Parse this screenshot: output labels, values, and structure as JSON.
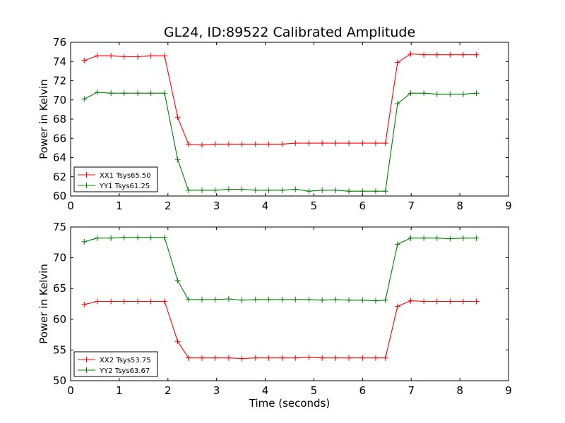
{
  "title": "GL24, ID:89522 Calibrated Amplitude",
  "chart_data": [
    {
      "type": "line",
      "ylabel": "Power in Kelvin",
      "xlabel": "",
      "xlim": [
        0,
        9
      ],
      "ylim": [
        60,
        76
      ],
      "xticks": [
        0,
        1,
        2,
        3,
        4,
        5,
        6,
        7,
        8,
        9
      ],
      "yticks": [
        60,
        62,
        64,
        66,
        68,
        70,
        72,
        74,
        76
      ],
      "grid": false,
      "legend_position": "lower-left",
      "x": [
        0.28,
        0.55,
        0.83,
        1.1,
        1.38,
        1.65,
        1.93,
        2.2,
        2.42,
        2.7,
        2.97,
        3.25,
        3.52,
        3.8,
        4.07,
        4.35,
        4.62,
        4.9,
        5.17,
        5.45,
        5.72,
        6.0,
        6.27,
        6.47,
        6.72,
        6.99,
        7.26,
        7.53,
        7.8,
        8.07,
        8.34
      ],
      "series": [
        {
          "name": "XX1 Tsys65.50",
          "color": "#ff0000",
          "values": [
            74.1,
            74.6,
            74.6,
            74.5,
            74.5,
            74.6,
            74.6,
            68.2,
            65.4,
            65.3,
            65.4,
            65.4,
            65.4,
            65.4,
            65.4,
            65.4,
            65.5,
            65.5,
            65.5,
            65.5,
            65.5,
            65.5,
            65.5,
            65.5,
            73.9,
            74.8,
            74.7,
            74.7,
            74.7,
            74.7,
            74.7
          ]
        },
        {
          "name": "YY1 Tsys61.25",
          "color": "#008000",
          "values": [
            70.1,
            70.8,
            70.7,
            70.7,
            70.7,
            70.7,
            70.7,
            63.8,
            60.6,
            60.6,
            60.6,
            60.7,
            60.7,
            60.6,
            60.6,
            60.6,
            60.7,
            60.5,
            60.6,
            60.6,
            60.5,
            60.5,
            60.5,
            60.5,
            69.6,
            70.7,
            70.7,
            70.6,
            70.6,
            70.6,
            70.7
          ]
        }
      ]
    },
    {
      "type": "line",
      "ylabel": "Power in Kelvin",
      "xlabel": "Time (seconds)",
      "xlim": [
        0,
        9
      ],
      "ylim": [
        50,
        75
      ],
      "xticks": [
        0,
        1,
        2,
        3,
        4,
        5,
        6,
        7,
        8,
        9
      ],
      "yticks": [
        50,
        55,
        60,
        65,
        70,
        75
      ],
      "grid": false,
      "legend_position": "lower-left",
      "x": [
        0.28,
        0.55,
        0.83,
        1.1,
        1.38,
        1.65,
        1.93,
        2.2,
        2.42,
        2.7,
        2.97,
        3.25,
        3.52,
        3.8,
        4.07,
        4.35,
        4.62,
        4.9,
        5.17,
        5.45,
        5.72,
        6.0,
        6.27,
        6.47,
        6.72,
        6.99,
        7.26,
        7.53,
        7.8,
        8.07,
        8.34
      ],
      "series": [
        {
          "name": "XX2 Tsys53.75",
          "color": "#ff0000",
          "values": [
            62.4,
            62.9,
            62.9,
            62.9,
            62.9,
            62.9,
            62.9,
            56.4,
            53.7,
            53.7,
            53.7,
            53.7,
            53.6,
            53.7,
            53.7,
            53.7,
            53.7,
            53.8,
            53.7,
            53.7,
            53.7,
            53.7,
            53.7,
            53.7,
            62.1,
            63.0,
            62.9,
            62.9,
            62.9,
            62.9,
            62.9
          ]
        },
        {
          "name": "YY2 Tsys63.67",
          "color": "#008000",
          "values": [
            72.6,
            73.2,
            73.2,
            73.3,
            73.3,
            73.3,
            73.3,
            66.3,
            63.2,
            63.2,
            63.2,
            63.3,
            63.1,
            63.2,
            63.2,
            63.2,
            63.2,
            63.2,
            63.1,
            63.2,
            63.1,
            63.1,
            63.0,
            63.1,
            72.2,
            73.2,
            73.2,
            73.2,
            73.1,
            73.2,
            73.2
          ]
        }
      ]
    }
  ]
}
